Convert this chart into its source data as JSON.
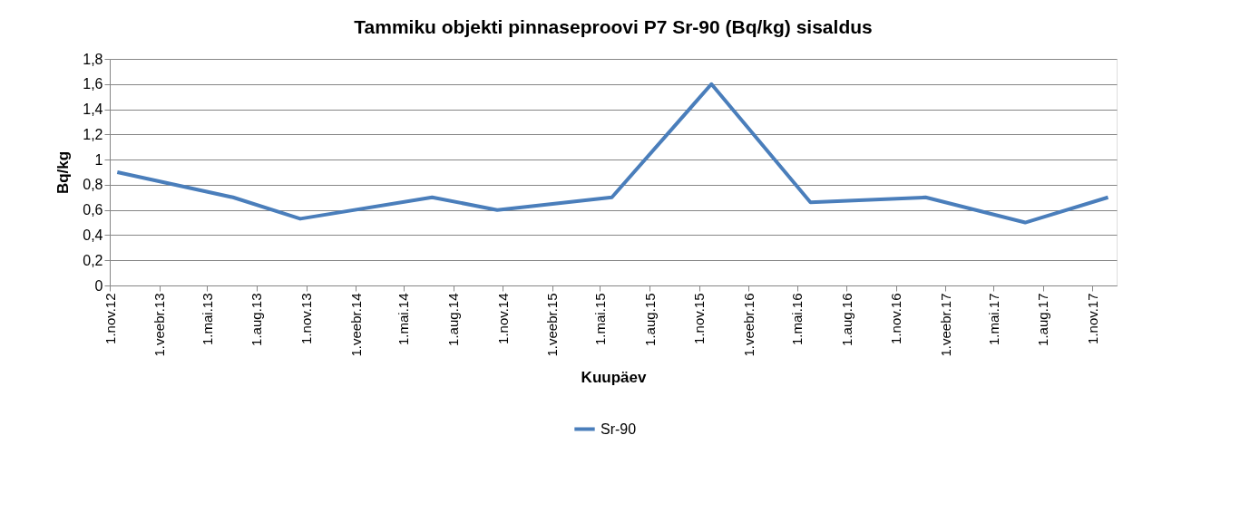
{
  "chart_data": {
    "type": "line",
    "title": "Tammiku objekti pinnaseproovi P7 Sr-90 (Bq/kg) sisaldus",
    "xlabel": "Kuupäev",
    "ylabel": "Bq/kg",
    "x": [
      "2012-11-15",
      "2013-06-18",
      "2013-10-21",
      "2014-06-23",
      "2014-10-22",
      "2015-05-23",
      "2015-11-24",
      "2016-05-26",
      "2016-12-26",
      "2017-06-29",
      "2017-11-30"
    ],
    "series": [
      {
        "name": "Sr-90",
        "color": "#4a7ebb",
        "values": [
          0.9,
          0.7,
          0.53,
          0.7,
          0.6,
          0.7,
          1.6,
          0.66,
          0.7,
          0.5,
          0.7
        ]
      }
    ],
    "xlim": [
      "2012-11-01",
      "2017-12-16"
    ],
    "xticks": [
      {
        "value": "2012-11-01",
        "label": "1.nov.12"
      },
      {
        "value": "2013-02-01",
        "label": "1.veebr.13"
      },
      {
        "value": "2013-05-01",
        "label": "1.mai.13"
      },
      {
        "value": "2013-08-01",
        "label": "1.aug.13"
      },
      {
        "value": "2013-11-01",
        "label": "1.nov.13"
      },
      {
        "value": "2014-02-01",
        "label": "1.veebr.14"
      },
      {
        "value": "2014-05-01",
        "label": "1.mai.14"
      },
      {
        "value": "2014-08-01",
        "label": "1.aug.14"
      },
      {
        "value": "2014-11-01",
        "label": "1.nov.14"
      },
      {
        "value": "2015-02-01",
        "label": "1.veebr.15"
      },
      {
        "value": "2015-05-01",
        "label": "1.mai.15"
      },
      {
        "value": "2015-08-01",
        "label": "1.aug.15"
      },
      {
        "value": "2015-11-01",
        "label": "1.nov.15"
      },
      {
        "value": "2016-02-01",
        "label": "1.veebr.16"
      },
      {
        "value": "2016-05-01",
        "label": "1.mai.16"
      },
      {
        "value": "2016-08-01",
        "label": "1.aug.16"
      },
      {
        "value": "2016-11-01",
        "label": "1.nov.16"
      },
      {
        "value": "2017-02-01",
        "label": "1.veebr.17"
      },
      {
        "value": "2017-05-01",
        "label": "1.mai.17"
      },
      {
        "value": "2017-08-01",
        "label": "1.aug.17"
      },
      {
        "value": "2017-11-01",
        "label": "1.nov.17"
      }
    ],
    "ylim": [
      0,
      1.8
    ],
    "yticks": [
      {
        "value": 0,
        "label": "0"
      },
      {
        "value": 0.2,
        "label": "0,2"
      },
      {
        "value": 0.4,
        "label": "0,4"
      },
      {
        "value": 0.6,
        "label": "0,6"
      },
      {
        "value": 0.8,
        "label": "0,8"
      },
      {
        "value": 1,
        "label": "1"
      },
      {
        "value": 1.2,
        "label": "1,2"
      },
      {
        "value": 1.4,
        "label": "1,4"
      },
      {
        "value": 1.6,
        "label": "1,6"
      },
      {
        "value": 1.8,
        "label": "1,8"
      }
    ],
    "grid": "y",
    "legend": "bottom",
    "marker": "none",
    "line_style": "solid"
  }
}
